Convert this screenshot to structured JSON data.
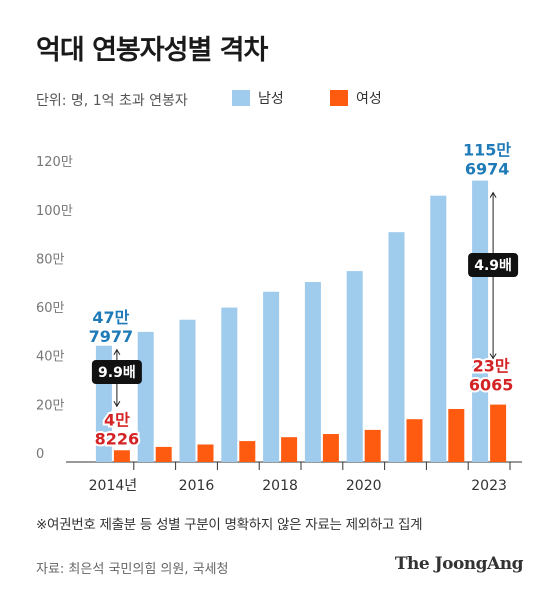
{
  "title": "억대 연봉자성별 격차",
  "unit_label": "단위: 명, 1억 초과 연봉자",
  "legend": {
    "male": "남성",
    "female": "여성"
  },
  "colors": {
    "male": "#9fcbec",
    "female": "#fe5a10",
    "male_label": "#1f7ab8",
    "female_label": "#d42324",
    "axis_text": "#777777",
    "ratio_box": "#111111"
  },
  "chart_data": {
    "type": "bar",
    "categories": [
      "2014",
      "2015",
      "2016",
      "2017",
      "2018",
      "2019",
      "2020",
      "2021",
      "2022",
      "2023"
    ],
    "x_tick_labels": [
      "2014년",
      "",
      "2016",
      "",
      "2018",
      "",
      "2020",
      "",
      "",
      "2023"
    ],
    "series": [
      {
        "name": "남성",
        "values": [
          477977,
          535000,
          585000,
          635000,
          700000,
          740000,
          785000,
          945000,
          1095000,
          1156974
        ]
      },
      {
        "name": "여성",
        "values": [
          48226,
          62000,
          72000,
          86000,
          102000,
          115000,
          132000,
          176000,
          218000,
          236065
        ]
      }
    ],
    "ylim": [
      0,
      1250000
    ],
    "y_ticks": [
      {
        "value": 0,
        "label": "0"
      },
      {
        "value": 200000,
        "label": "20만"
      },
      {
        "value": 400000,
        "label": "40만"
      },
      {
        "value": 600000,
        "label": "60만"
      },
      {
        "value": 800000,
        "label": "80만"
      },
      {
        "value": 1000000,
        "label": "100만"
      },
      {
        "value": 1200000,
        "label": "120만"
      }
    ],
    "grid": false,
    "legend_position": "top",
    "annotations": {
      "first_male": [
        "47만",
        "7977"
      ],
      "first_female": [
        "4만",
        "8226"
      ],
      "first_ratio": "9.9배",
      "last_male": [
        "115만",
        "6974"
      ],
      "last_female": [
        "23만",
        "6065"
      ],
      "last_ratio": "4.9배"
    }
  },
  "footnote": "※여권번호 제출분 등 성별 구분이 명확하지 않은 자료는 제외하고 집계",
  "source": "자료: 최은석 국민의힘 의원, 국세청",
  "logo_text": "The JoongAng"
}
